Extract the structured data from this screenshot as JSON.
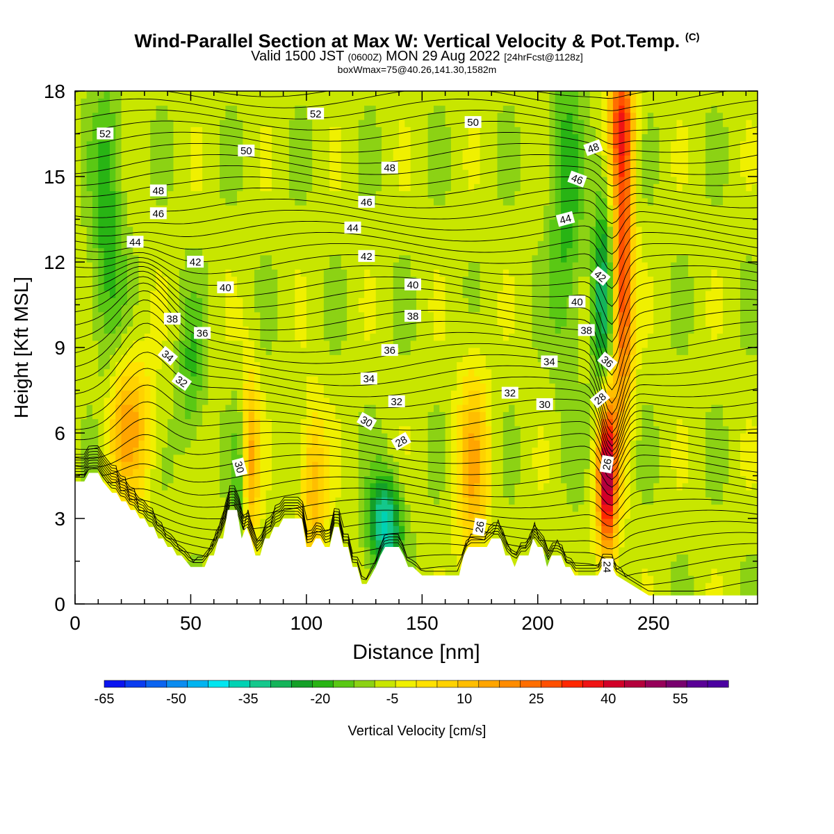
{
  "header": {
    "title": "Wind-Parallel Section at Max W: Vertical Velocity & Pot.Temp.",
    "copyright": "(C)",
    "subtitle_pre": "Valid 1500 JST",
    "subtitle_zulu": "(0600Z)",
    "subtitle_mid": "MON 29 Aug 2022",
    "subtitle_fcst": "[24hrFcst@1128z]",
    "boxline": "boxWmax=75@40.26,141.30,1582m"
  },
  "chart_data": {
    "type": "heatmap",
    "title": "Wind-Parallel Section at Max W: Vertical Velocity & Pot.Temp.",
    "xlabel": "Distance [nm]",
    "ylabel": "Height [Kft MSL]",
    "xlim": [
      0,
      295
    ],
    "ylim": [
      0,
      18
    ],
    "x_ticks": [
      0,
      50,
      100,
      150,
      200,
      250
    ],
    "y_ticks": [
      0,
      3,
      6,
      9,
      12,
      15,
      18
    ],
    "grid": false,
    "colorbar": {
      "label": "Vertical Velocity [cm/s]",
      "min": -65,
      "max": 65,
      "step": 5,
      "tick_labels": [
        -65,
        -50,
        -35,
        -20,
        -5,
        10,
        25,
        40,
        55
      ],
      "colors": [
        "#0a14f0",
        "#0a3cf0",
        "#0a64f0",
        "#0a8cf0",
        "#00b4f0",
        "#00e6f0",
        "#00d2b4",
        "#14c88c",
        "#14b45a",
        "#14a028",
        "#28b414",
        "#5ac814",
        "#8cd214",
        "#c8e600",
        "#f0f000",
        "#ffe100",
        "#ffd200",
        "#ffbe00",
        "#ffa500",
        "#ff8c00",
        "#ff6e00",
        "#ff5000",
        "#ff2800",
        "#f01414",
        "#d20028",
        "#b4003c",
        "#96005a",
        "#78006e",
        "#5a0096",
        "#4b00a0"
      ]
    },
    "terrain_profile_kft": [
      [
        0,
        4.3
      ],
      [
        4,
        4.3
      ],
      [
        6,
        4.6
      ],
      [
        10,
        4.6
      ],
      [
        12,
        4.3
      ],
      [
        16,
        3.9
      ],
      [
        18,
        3.9
      ],
      [
        20,
        3.6
      ],
      [
        22,
        3.6
      ],
      [
        24,
        3.3
      ],
      [
        26,
        3.3
      ],
      [
        28,
        3.0
      ],
      [
        30,
        3.0
      ],
      [
        32,
        2.7
      ],
      [
        34,
        2.7
      ],
      [
        36,
        2.3
      ],
      [
        38,
        2.3
      ],
      [
        40,
        2.0
      ],
      [
        42,
        2.0
      ],
      [
        44,
        1.7
      ],
      [
        46,
        1.7
      ],
      [
        50,
        1.3
      ],
      [
        56,
        1.3
      ],
      [
        58,
        1.7
      ],
      [
        60,
        1.7
      ],
      [
        62,
        2.3
      ],
      [
        64,
        2.3
      ],
      [
        66,
        3.3
      ],
      [
        70,
        3.3
      ],
      [
        72,
        2.3
      ],
      [
        74,
        2.7
      ],
      [
        76,
        2.3
      ],
      [
        78,
        1.7
      ],
      [
        80,
        1.7
      ],
      [
        82,
        2.3
      ],
      [
        84,
        2.3
      ],
      [
        86,
        2.7
      ],
      [
        88,
        2.7
      ],
      [
        90,
        3.0
      ],
      [
        92,
        3.0
      ],
      [
        94,
        3.0
      ],
      [
        98,
        3.0
      ],
      [
        100,
        2.0
      ],
      [
        102,
        2.0
      ],
      [
        104,
        2.3
      ],
      [
        106,
        2.3
      ],
      [
        108,
        2.0
      ],
      [
        110,
        2.0
      ],
      [
        112,
        2.7
      ],
      [
        114,
        2.7
      ],
      [
        116,
        2.0
      ],
      [
        118,
        2.0
      ],
      [
        120,
        1.3
      ],
      [
        122,
        1.3
      ],
      [
        124,
        0.7
      ],
      [
        126,
        0.7
      ],
      [
        128,
        1.0
      ],
      [
        130,
        1.3
      ],
      [
        132,
        1.7
      ],
      [
        134,
        2.0
      ],
      [
        140,
        2.0
      ],
      [
        142,
        1.7
      ],
      [
        144,
        1.3
      ],
      [
        146,
        1.3
      ],
      [
        150,
        1.0
      ],
      [
        166,
        1.0
      ],
      [
        168,
        1.7
      ],
      [
        170,
        2.0
      ],
      [
        178,
        2.0
      ],
      [
        180,
        2.3
      ],
      [
        184,
        2.3
      ],
      [
        186,
        1.7
      ],
      [
        188,
        1.7
      ],
      [
        190,
        1.3
      ],
      [
        192,
        1.7
      ],
      [
        196,
        1.7
      ],
      [
        198,
        2.3
      ],
      [
        200,
        2.0
      ],
      [
        202,
        2.0
      ],
      [
        204,
        1.3
      ],
      [
        206,
        1.7
      ],
      [
        210,
        1.7
      ],
      [
        212,
        1.3
      ],
      [
        214,
        1.3
      ],
      [
        216,
        1.0
      ],
      [
        226,
        1.0
      ],
      [
        228,
        1.3
      ],
      [
        232,
        1.3
      ],
      [
        234,
        1.0
      ],
      [
        240,
        0.7
      ],
      [
        244,
        0.5
      ],
      [
        248,
        0.3
      ],
      [
        295,
        0.3
      ]
    ],
    "vertical_velocity_features": [
      {
        "x": 23,
        "y": 6.2,
        "w": 25,
        "sx": 7,
        "sy": 1.8
      },
      {
        "x": 75,
        "y": 5.0,
        "w": 30,
        "sx": 3,
        "sy": 2.2
      },
      {
        "x": 72,
        "y": 4.5,
        "w": -20,
        "sx": 2.5,
        "sy": 2.0
      },
      {
        "x": 103,
        "y": 4.0,
        "w": 22,
        "sx": 4,
        "sy": 2.0
      },
      {
        "x": 134,
        "y": 2.8,
        "w": -35,
        "sx": 5,
        "sy": 1.2
      },
      {
        "x": 172,
        "y": 4.8,
        "w": 22,
        "sx": 5,
        "sy": 2.5
      },
      {
        "x": 230,
        "y": 4.6,
        "w": 65,
        "sx": 3,
        "sy": 2.0
      },
      {
        "x": 237,
        "y": 11.5,
        "w": 45,
        "sx": 3,
        "sy": 3.5
      },
      {
        "x": 228,
        "y": 10.5,
        "w": -25,
        "sx": 3,
        "sy": 3.0
      },
      {
        "x": 236,
        "y": 17.0,
        "w": 35,
        "sx": 4,
        "sy": 1.5
      },
      {
        "x": 14,
        "y": 13.0,
        "w": -15,
        "sx": 5,
        "sy": 4.0
      },
      {
        "x": 50,
        "y": 8.0,
        "w": -12,
        "sx": 4,
        "sy": 2.0
      },
      {
        "x": 212,
        "y": 14.0,
        "w": -15,
        "sx": 5,
        "sy": 4.0
      }
    ],
    "theta_contour_labels": [
      {
        "text": "52",
        "x": 13,
        "y": 16.5,
        "rot": 0
      },
      {
        "text": "52",
        "x": 104,
        "y": 17.2,
        "rot": 0
      },
      {
        "text": "50",
        "x": 74,
        "y": 15.9,
        "rot": 0
      },
      {
        "text": "50",
        "x": 172,
        "y": 16.9,
        "rot": 0
      },
      {
        "text": "48",
        "x": 36,
        "y": 14.5,
        "rot": 0
      },
      {
        "text": "48",
        "x": 136,
        "y": 15.3,
        "rot": 0
      },
      {
        "text": "48",
        "x": 224,
        "y": 16.0,
        "rot": -20
      },
      {
        "text": "46",
        "x": 36,
        "y": 13.7,
        "rot": 0
      },
      {
        "text": "46",
        "x": 126,
        "y": 14.1,
        "rot": 0
      },
      {
        "text": "46",
        "x": 217,
        "y": 14.9,
        "rot": 20
      },
      {
        "text": "44",
        "x": 26,
        "y": 12.7,
        "rot": 0
      },
      {
        "text": "44",
        "x": 120,
        "y": 13.2,
        "rot": 0
      },
      {
        "text": "44",
        "x": 212,
        "y": 13.5,
        "rot": -15
      },
      {
        "text": "42",
        "x": 52,
        "y": 12.0,
        "rot": 0
      },
      {
        "text": "42",
        "x": 126,
        "y": 12.2,
        "rot": 0
      },
      {
        "text": "42",
        "x": 227,
        "y": 11.5,
        "rot": 40
      },
      {
        "text": "40",
        "x": 65,
        "y": 11.1,
        "rot": 0
      },
      {
        "text": "40",
        "x": 146,
        "y": 11.2,
        "rot": 0
      },
      {
        "text": "40",
        "x": 217,
        "y": 10.6,
        "rot": 0
      },
      {
        "text": "38",
        "x": 42,
        "y": 10.0,
        "rot": 0
      },
      {
        "text": "38",
        "x": 146,
        "y": 10.1,
        "rot": 0
      },
      {
        "text": "38",
        "x": 221,
        "y": 9.6,
        "rot": 0
      },
      {
        "text": "36",
        "x": 55,
        "y": 9.5,
        "rot": 0
      },
      {
        "text": "36",
        "x": 136,
        "y": 8.9,
        "rot": 0
      },
      {
        "text": "36",
        "x": 230,
        "y": 8.5,
        "rot": 40
      },
      {
        "text": "34",
        "x": 40,
        "y": 8.7,
        "rot": 40
      },
      {
        "text": "34",
        "x": 127,
        "y": 7.9,
        "rot": 0
      },
      {
        "text": "34",
        "x": 205,
        "y": 8.5,
        "rot": 0
      },
      {
        "text": "32",
        "x": 46,
        "y": 7.8,
        "rot": 35
      },
      {
        "text": "32",
        "x": 139,
        "y": 7.1,
        "rot": 0
      },
      {
        "text": "32",
        "x": 188,
        "y": 7.4,
        "rot": 0
      },
      {
        "text": "30",
        "x": 126,
        "y": 6.4,
        "rot": 30
      },
      {
        "text": "30",
        "x": 203,
        "y": 7.0,
        "rot": 0
      },
      {
        "text": "30",
        "x": 71,
        "y": 4.8,
        "rot": 75
      },
      {
        "text": "28",
        "x": 141,
        "y": 5.7,
        "rot": -30
      },
      {
        "text": "28",
        "x": 227,
        "y": 7.2,
        "rot": -40
      },
      {
        "text": "26",
        "x": 230,
        "y": 4.9,
        "rot": -80
      },
      {
        "text": "26",
        "x": 175,
        "y": 2.7,
        "rot": -80
      },
      {
        "text": "24",
        "x": 230,
        "y": 1.3,
        "rot": 90
      }
    ]
  }
}
